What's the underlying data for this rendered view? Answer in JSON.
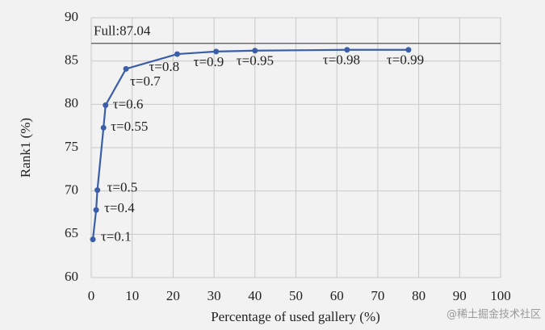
{
  "chart_data": {
    "type": "line",
    "x_label": "Percentage of used gallery (%)",
    "y_label": "Rank1 (%)",
    "x": [
      0.4,
      1.2,
      1.5,
      3,
      3.5,
      8.5,
      21,
      30.5,
      40,
      62.5,
      77.5
    ],
    "series": [
      {
        "color": "#3a5ea8",
        "values": [
          64.4,
          67.8,
          70.1,
          77.3,
          79.9,
          84.1,
          85.8,
          86.1,
          86.2,
          86.3,
          86.3
        ]
      }
    ],
    "point_labels": [
      "τ=0.1",
      "τ=0.4",
      "τ=0.5",
      "τ=0.55",
      "τ=0.6",
      "τ=0.7",
      "τ=0.8",
      "τ=0.9",
      "τ=0.95",
      "τ=0.98",
      "τ=0.99"
    ],
    "reference_line": {
      "value": 87.04,
      "label": "Full:87.04"
    },
    "xlim": [
      0,
      100
    ],
    "xticks": [
      0,
      10,
      20,
      30,
      40,
      50,
      60,
      70,
      80,
      90,
      100
    ],
    "ylim": [
      60,
      90
    ],
    "yticks": [
      60,
      65,
      70,
      75,
      80,
      85,
      90
    ],
    "grid": true,
    "watermark": "@稀土掘金技术社区"
  }
}
